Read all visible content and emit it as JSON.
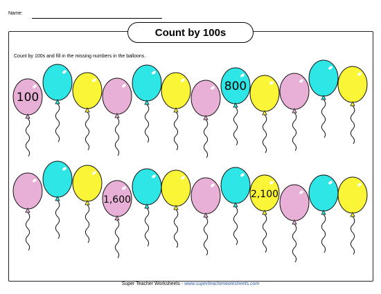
{
  "header": {
    "name_label": "Name:",
    "title": "Count by 100s"
  },
  "instructions": "Count by 100s and fill in the missing numbers in the balloons.",
  "colors": {
    "pink": "#e8b0d6",
    "cyan": "#2ee6e6",
    "yellow": "#fbf537",
    "outline": "#111111"
  },
  "rows": [
    {
      "balloons": [
        {
          "color": "pink",
          "label": "100"
        },
        {
          "color": "cyan",
          "label": ""
        },
        {
          "color": "yellow",
          "label": ""
        },
        {
          "color": "pink",
          "label": ""
        },
        {
          "color": "cyan",
          "label": ""
        },
        {
          "color": "yellow",
          "label": ""
        },
        {
          "color": "pink",
          "label": ""
        },
        {
          "color": "cyan",
          "label": "800"
        },
        {
          "color": "yellow",
          "label": ""
        },
        {
          "color": "pink",
          "label": ""
        },
        {
          "color": "cyan",
          "label": ""
        },
        {
          "color": "yellow",
          "label": ""
        }
      ]
    },
    {
      "balloons": [
        {
          "color": "pink",
          "label": ""
        },
        {
          "color": "cyan",
          "label": ""
        },
        {
          "color": "yellow",
          "label": ""
        },
        {
          "color": "pink",
          "label": "1,600"
        },
        {
          "color": "cyan",
          "label": ""
        },
        {
          "color": "yellow",
          "label": ""
        },
        {
          "color": "pink",
          "label": ""
        },
        {
          "color": "cyan",
          "label": ""
        },
        {
          "color": "yellow",
          "label": "2,100"
        },
        {
          "color": "pink",
          "label": ""
        },
        {
          "color": "cyan",
          "label": ""
        },
        {
          "color": "yellow",
          "label": ""
        }
      ]
    }
  ],
  "footer": {
    "brand": "Super Teacher Worksheets",
    "separator": " - ",
    "url": "www.superteacherworksheets.com"
  }
}
